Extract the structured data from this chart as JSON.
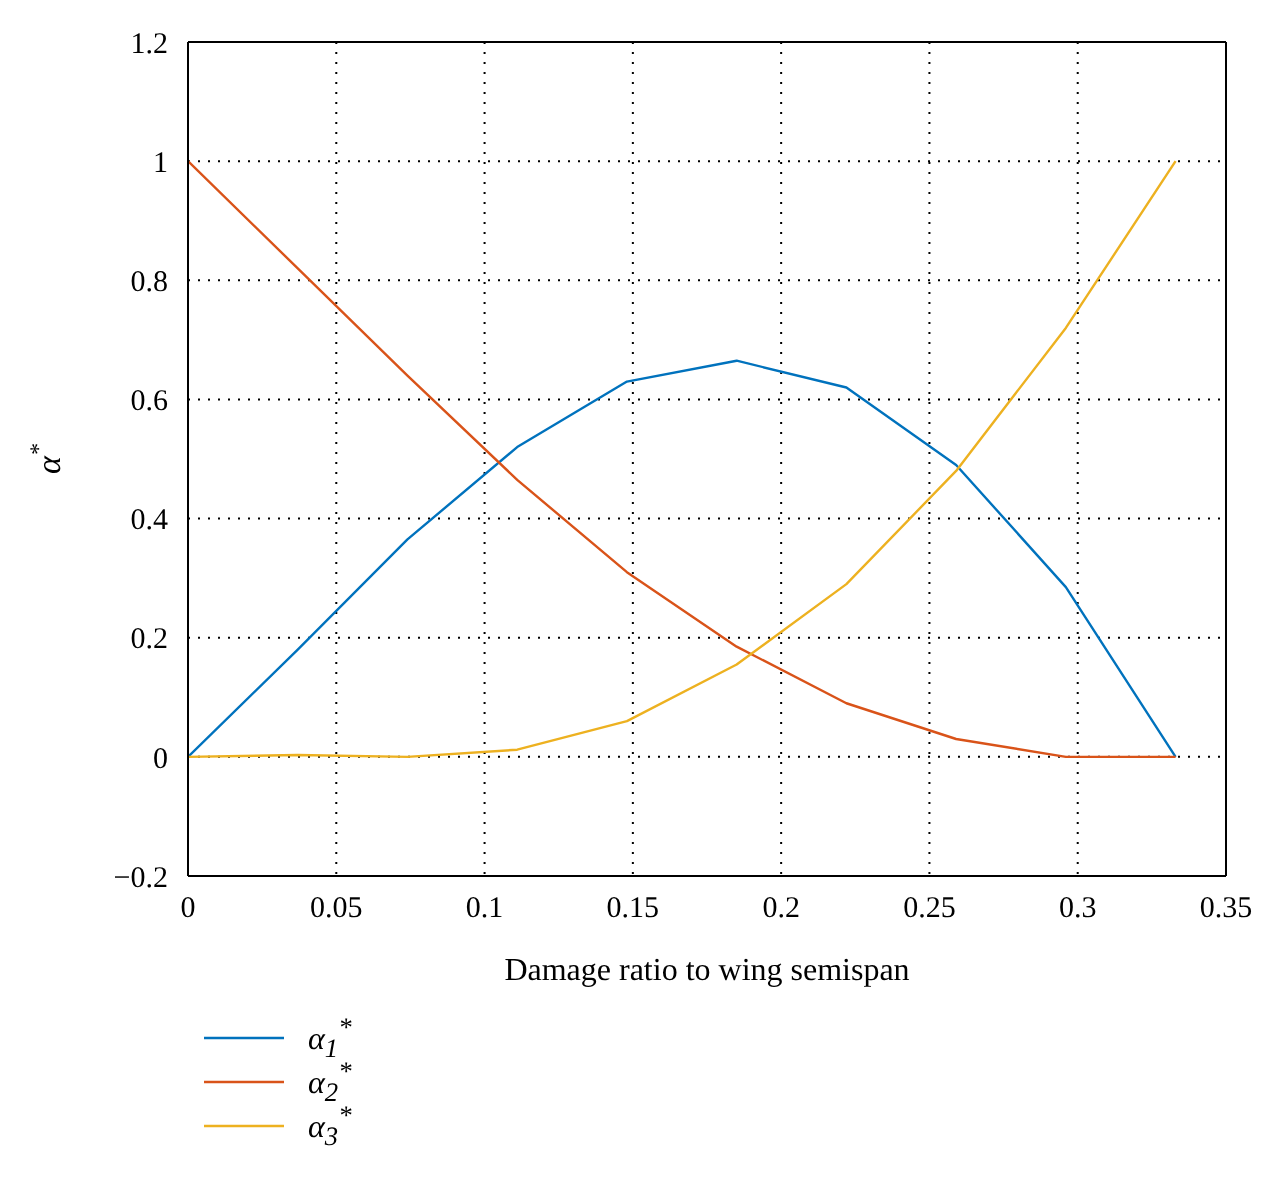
{
  "chart_data": {
    "type": "line",
    "xlabel": "Damage ratio to wing semispan",
    "ylabel": "α$^{*}$",
    "x": [
      0,
      0.037,
      0.074,
      0.111,
      0.148,
      0.185,
      0.222,
      0.259,
      0.296,
      0.333
    ],
    "series": [
      {
        "name": "α$_{1}$$^{*}$",
        "color": "#0072bd",
        "values": [
          0,
          0.18,
          0.365,
          0.52,
          0.63,
          0.665,
          0.62,
          0.49,
          0.285,
          0
        ]
      },
      {
        "name": "α$_{2}$$^{*}$",
        "color": "#d95319",
        "values": [
          1,
          0.82,
          0.64,
          0.465,
          0.31,
          0.185,
          0.09,
          0.03,
          0,
          0
        ]
      },
      {
        "name": "α$_{3}$$^{*}$",
        "color": "#edb120",
        "values": [
          0,
          0.003,
          0,
          0.012,
          0.06,
          0.155,
          0.29,
          0.48,
          0.72,
          1
        ]
      }
    ],
    "xlim": [
      0,
      0.35
    ],
    "xticks": [
      0,
      0.05,
      0.1,
      0.15,
      0.2,
      0.25,
      0.3,
      0.35
    ],
    "ylim": [
      -0.2,
      1.2
    ],
    "yticks": [
      {
        "value": -0.2,
        "label": "−0.2"
      },
      0,
      0.2,
      0.4,
      0.6,
      0.8,
      1,
      1.2
    ],
    "grid": true,
    "legend": "bottom left",
    "marker": "none",
    "line_style": "solid"
  }
}
